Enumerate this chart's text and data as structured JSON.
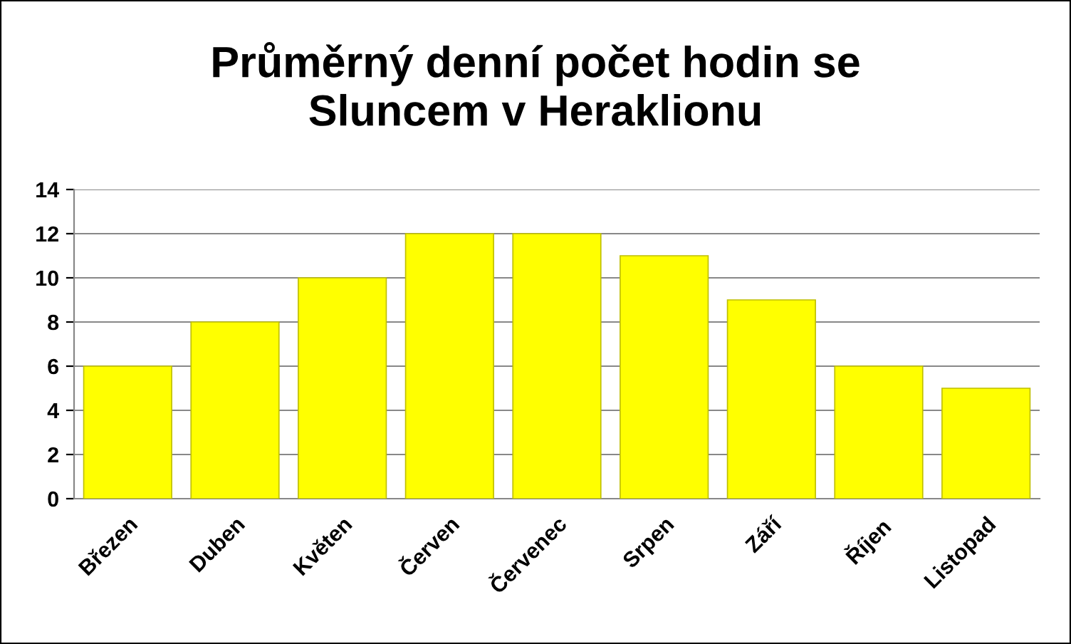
{
  "chart_data": {
    "type": "bar",
    "title": "Průměrný denní počet hodin se\nSluncem v Heraklionu",
    "categories": [
      "Březen",
      "Duben",
      "Květen",
      "Červen",
      "Červenec",
      "Srpen",
      "Září",
      "Říjen",
      "Listopad"
    ],
    "values": [
      6,
      8,
      10,
      12,
      12,
      11,
      9,
      6,
      5
    ],
    "color": "#ffff00",
    "ylim": [
      0,
      14
    ],
    "yticks": [
      0,
      2,
      4,
      6,
      8,
      10,
      12,
      14
    ],
    "grid": "y",
    "legend": false
  }
}
